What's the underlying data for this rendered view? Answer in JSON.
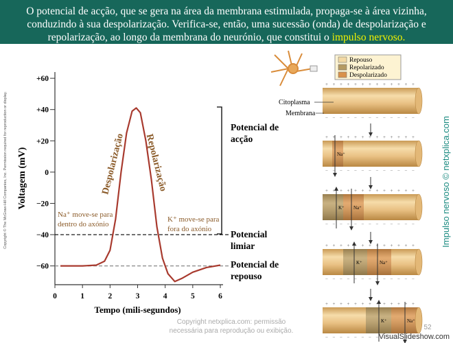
{
  "header": {
    "lines": [
      "O potencial de acção, que se gera na área da membrana estimulada, propaga-se à área vizinha,",
      "conduzindo à sua despolarização. Verifica-se, então, uma sucessão (onda) de despolarização e",
      "repolarização, ao longo da membrana do neurónio, que constitui o "
    ],
    "highlight": "impulso nervoso."
  },
  "chart_data": {
    "type": "line",
    "y_label": "Voltagem (mV)",
    "x_label": "Tempo (mili-segundos)",
    "x": [
      0.2,
      1,
      1.5,
      1.8,
      2.0,
      2.2,
      2.4,
      2.6,
      2.8,
      2.95,
      3.1,
      3.3,
      3.5,
      3.7,
      3.9,
      4.1,
      4.35,
      4.6,
      5.0,
      5.5,
      6.0
    ],
    "series": [
      {
        "color": "#a83a2e",
        "values": [
          -60,
          -60,
          -59.5,
          -57,
          -50,
          -30,
          0,
          25,
          39,
          41,
          38,
          20,
          -5,
          -35,
          -55,
          -65,
          -70,
          -68,
          -64,
          -61,
          -59.5
        ]
      }
    ],
    "xlim": [
      0,
      6
    ],
    "xticks": [
      0,
      1,
      2,
      3,
      4,
      5,
      6
    ],
    "ylim": [
      -72,
      64
    ],
    "yticks": [
      {
        "value": 60,
        "label": "+60"
      },
      {
        "value": 40,
        "label": "+40"
      },
      {
        "value": 20,
        "label": "+20"
      },
      0,
      {
        "value": -20,
        "label": "−20"
      },
      {
        "value": -40,
        "label": "−40"
      },
      {
        "value": -60,
        "label": "−60"
      }
    ],
    "reference_lines": [
      {
        "value": -40,
        "color": "#000000"
      },
      {
        "value": -60,
        "color": "#888888"
      }
    ],
    "annotations": {
      "depolarization": "Despolarização",
      "repolarization": "Repolarização",
      "na_in": [
        "Na⁺ move-se para",
        "dentro do axónio"
      ],
      "k_out": [
        "K⁺ move-se para",
        "fora do axónio"
      ],
      "action_potential": [
        "Potencial de",
        "acção"
      ],
      "threshold": [
        "Potencial",
        "limiar"
      ],
      "resting": [
        "Potencial de",
        "repouso"
      ]
    }
  },
  "diagram": {
    "legend": [
      {
        "label": "Repouso",
        "color": "#f3d9a4"
      },
      {
        "label": "Repolarizado",
        "color": "#b59a62"
      },
      {
        "label": "Despolarizado",
        "color": "#d9914a"
      }
    ],
    "membrane_labels": [
      "Citoplasma",
      "Membrana"
    ],
    "ions": {
      "na": "Na⁺",
      "k": "K⁺"
    },
    "signs": {
      "positive": "+",
      "negative": "−"
    }
  },
  "side_text": "Impulso nervoso © netxplica.com",
  "copyright_left": "Copyright © The McGraw-Hill Companies, Inc. Permission required for reproduction or display.",
  "watermark": [
    "Copyright netxplica.com: permissão",
    "necessária para reprodução ou exibição."
  ],
  "page_number": 52,
  "brand": "VisualSlideshow.com"
}
